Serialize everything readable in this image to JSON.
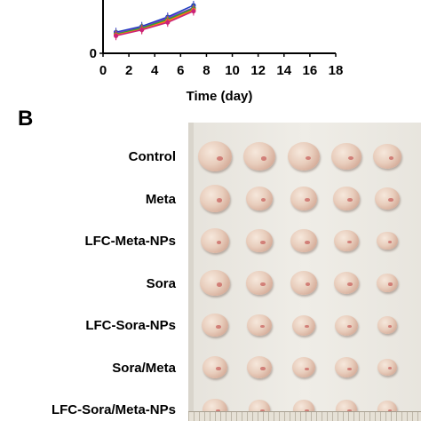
{
  "chart_data": {
    "type": "line",
    "xlabel": "Time (day)",
    "xticks": [
      "0",
      "2",
      "4",
      "6",
      "8",
      "10",
      "12",
      "14",
      "16",
      "18"
    ],
    "xlim": [
      0,
      18
    ],
    "visible_ytick": "0",
    "series_colors": [
      "#1f3fbf",
      "#8a2be2",
      "#e8392e",
      "#2e9e3a",
      "#ff7f0e",
      "#cc2277"
    ],
    "series": [
      {
        "x": [
          1,
          3,
          5,
          7
        ],
        "y": [
          0.9,
          1.15,
          1.55,
          2.05
        ]
      },
      {
        "x": [
          1,
          3,
          5,
          7
        ],
        "y": [
          0.85,
          1.1,
          1.5,
          1.95
        ]
      },
      {
        "x": [
          1,
          3,
          5,
          7
        ],
        "y": [
          0.8,
          1.05,
          1.4,
          1.9
        ]
      },
      {
        "x": [
          1,
          3,
          5,
          7
        ],
        "y": [
          0.82,
          1.08,
          1.45,
          1.92
        ]
      },
      {
        "x": [
          1,
          3,
          5,
          7
        ],
        "y": [
          0.78,
          1.02,
          1.38,
          1.85
        ]
      },
      {
        "x": [
          1,
          3,
          5,
          7
        ],
        "y": [
          0.75,
          1.0,
          1.32,
          1.8
        ]
      }
    ],
    "ylim_visible": [
      0,
      2.2
    ]
  },
  "panel_b": {
    "letter": "B",
    "groups": [
      "Control",
      "Meta",
      "LFC-Meta-NPs",
      "Sora",
      "LFC-Sora-NPs",
      "Sora/Meta",
      "LFC-Sora/Meta-NPs"
    ],
    "tumor_sizes": [
      [
        1.0,
        0.95,
        0.9,
        0.85,
        0.75
      ],
      [
        0.85,
        0.7,
        0.65,
        0.65,
        0.6
      ],
      [
        0.75,
        0.65,
        0.65,
        0.55,
        0.4
      ],
      [
        0.8,
        0.65,
        0.7,
        0.6,
        0.45
      ],
      [
        0.65,
        0.55,
        0.5,
        0.5,
        0.35
      ],
      [
        0.6,
        0.6,
        0.5,
        0.5,
        0.35
      ],
      [
        0.55,
        0.45,
        0.45,
        0.45,
        0.35
      ]
    ]
  }
}
